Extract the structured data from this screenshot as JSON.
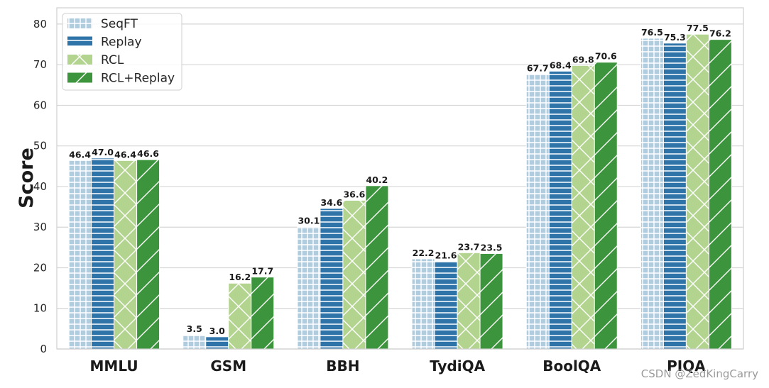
{
  "chart_data": {
    "type": "bar",
    "ylabel": "Score",
    "xlabel": "",
    "ylim": [
      0,
      84
    ],
    "yticks": [
      0,
      10,
      20,
      30,
      40,
      50,
      60,
      70,
      80
    ],
    "grid": true,
    "legend_position": "top-left",
    "categories": [
      "MMLU",
      "GSM",
      "BBH",
      "TydiQA",
      "BoolQA",
      "PIQA"
    ],
    "series": [
      {
        "name": "SeqFT",
        "color": "#b0cde0",
        "pattern": "grid",
        "values": [
          46.4,
          3.5,
          30.1,
          22.2,
          67.7,
          76.5
        ]
      },
      {
        "name": "Replay",
        "color": "#2e74a8",
        "pattern": "horizontal",
        "values": [
          47.0,
          3.0,
          34.6,
          21.6,
          68.4,
          75.3
        ]
      },
      {
        "name": "RCL",
        "color": "#b2d48f",
        "pattern": "crosshatch",
        "values": [
          46.4,
          16.2,
          36.6,
          23.7,
          69.8,
          77.5
        ]
      },
      {
        "name": "RCL+Replay",
        "color": "#3c953c",
        "pattern": "diagonal",
        "values": [
          46.6,
          17.7,
          40.2,
          23.5,
          70.6,
          76.2
        ]
      }
    ]
  },
  "watermark": "CSDN @ZedKingCarry"
}
